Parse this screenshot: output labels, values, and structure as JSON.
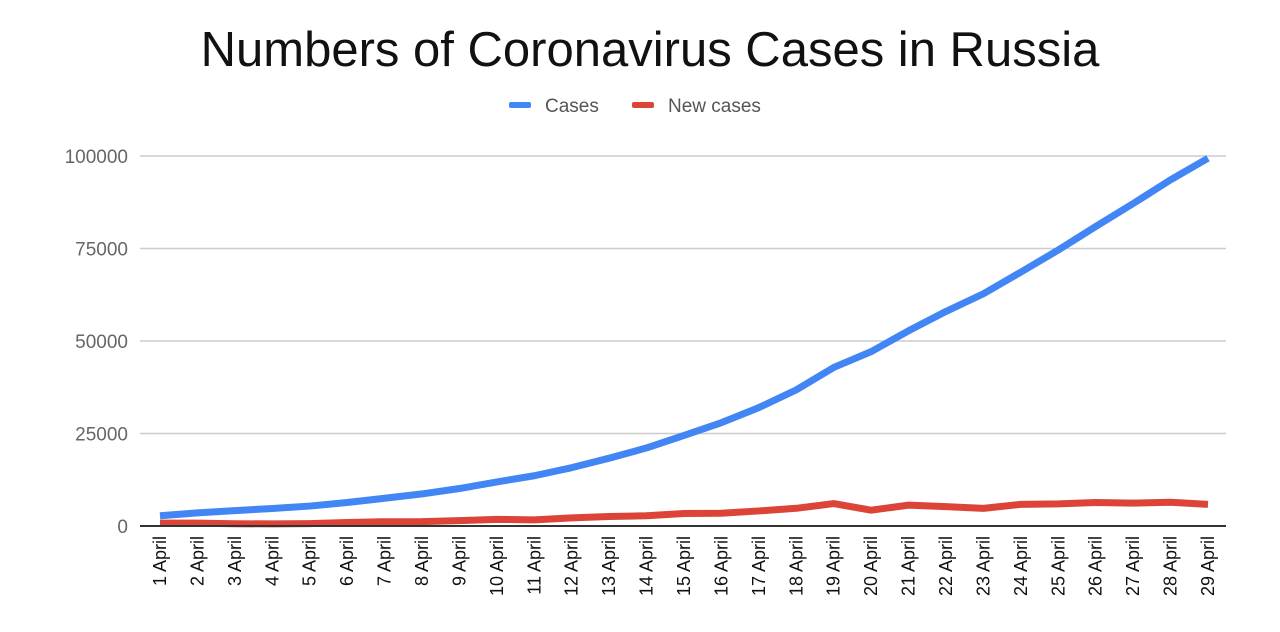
{
  "chart_data": {
    "type": "line",
    "title": "Numbers of Coronavirus Cases in Russia",
    "categories": [
      "1 April",
      "2 April",
      "3 April",
      "4 April",
      "5 April",
      "6 April",
      "7 April",
      "8 April",
      "9 April",
      "10 April",
      "11 April",
      "12 April",
      "13 April",
      "14 April",
      "15 April",
      "16 April",
      "17 April",
      "18 April",
      "19 April",
      "20 April",
      "21 April",
      "22 April",
      "23 April",
      "24 April",
      "25 April",
      "26 April",
      "27 April",
      "28 April",
      "29 April"
    ],
    "series": [
      {
        "name": "Cases",
        "color": "#4285f4",
        "values": [
          2777,
          3548,
          4149,
          4731,
          5389,
          6343,
          7497,
          8672,
          10131,
          11917,
          13584,
          15770,
          18328,
          21102,
          24490,
          27938,
          32008,
          36793,
          42853,
          47121,
          52763,
          57999,
          62773,
          68622,
          74588,
          80949,
          87147,
          93558,
          99399
        ]
      },
      {
        "name": "New cases",
        "color": "#db4437",
        "values": [
          771,
          771,
          601,
          582,
          658,
          954,
          1154,
          1175,
          1459,
          1786,
          1667,
          2186,
          2558,
          2774,
          3388,
          3448,
          4070,
          4785,
          6060,
          4268,
          5642,
          5236,
          4774,
          5849,
          5966,
          6361,
          6198,
          6411,
          5841
        ]
      }
    ],
    "yticks": [
      "0",
      "25000",
      "50000",
      "75000",
      "100000"
    ],
    "ylim": [
      0,
      100000
    ],
    "grid": true,
    "legend": "top"
  }
}
